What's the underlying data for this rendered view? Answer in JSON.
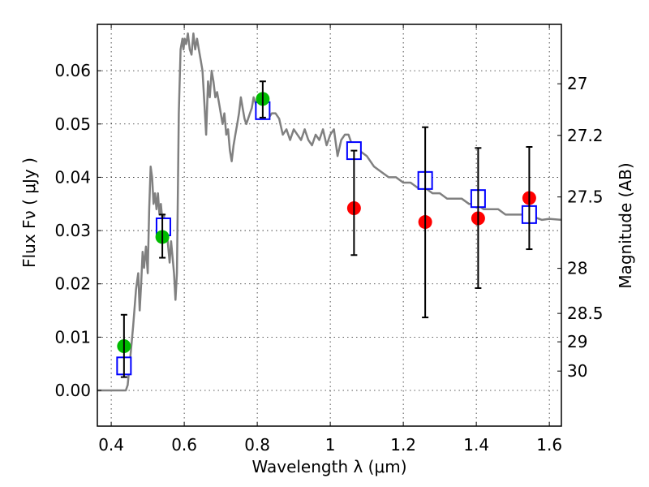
{
  "chart_data": {
    "type": "scatter",
    "title": "",
    "xlabel": "Wavelength  λ (μm)",
    "ylabel": "Flux  Fν  ( μJy )",
    "ylabel_right": "Magnitude (AB)",
    "xlim": [
      0.362,
      1.633
    ],
    "ylim": [
      -0.0067,
      0.0687
    ],
    "grid": true,
    "x_ticks": [
      0.4,
      0.6,
      0.8,
      1.0,
      1.2,
      1.4,
      1.6
    ],
    "x_tick_labels": [
      "0.4",
      "0.6",
      "0.8",
      "1",
      "1.2",
      "1.4",
      "1.6"
    ],
    "y_ticks": [
      0.0,
      0.01,
      0.02,
      0.03,
      0.04,
      0.05,
      0.06
    ],
    "y_tick_labels": [
      "0.00",
      "0.01",
      "0.02",
      "0.03",
      "0.04",
      "0.05",
      "0.06"
    ],
    "right_ticks_mag": [
      27,
      27.2,
      27.5,
      28,
      28.5,
      29,
      30
    ],
    "right_tick_labels": [
      "27",
      "27.2",
      "27.5",
      "28",
      "28.5",
      "29",
      "30"
    ],
    "mag_zero_point": 23.9,
    "colors": {
      "model": "#808080",
      "detected": "#00bb00",
      "upper": "#ff0000",
      "model_photometry": "#0000ff",
      "errorbar": "#000000"
    },
    "series": [
      {
        "name": "model-spectrum",
        "kind": "line",
        "x": [
          0.362,
          0.4,
          0.44,
          0.445,
          0.452,
          0.46,
          0.468,
          0.474,
          0.478,
          0.482,
          0.486,
          0.49,
          0.495,
          0.5,
          0.504,
          0.508,
          0.512,
          0.516,
          0.52,
          0.524,
          0.528,
          0.532,
          0.536,
          0.54,
          0.544,
          0.548,
          0.552,
          0.556,
          0.56,
          0.564,
          0.568,
          0.572,
          0.576,
          0.58,
          0.585,
          0.59,
          0.595,
          0.598,
          0.601,
          0.605,
          0.61,
          0.615,
          0.62,
          0.625,
          0.63,
          0.635,
          0.64,
          0.645,
          0.65,
          0.655,
          0.66,
          0.665,
          0.67,
          0.675,
          0.68,
          0.685,
          0.69,
          0.695,
          0.7,
          0.705,
          0.71,
          0.715,
          0.72,
          0.725,
          0.73,
          0.735,
          0.74,
          0.745,
          0.75,
          0.755,
          0.76,
          0.765,
          0.77,
          0.775,
          0.78,
          0.785,
          0.79,
          0.795,
          0.8,
          0.81,
          0.82,
          0.83,
          0.84,
          0.85,
          0.86,
          0.87,
          0.88,
          0.89,
          0.9,
          0.91,
          0.92,
          0.93,
          0.94,
          0.95,
          0.96,
          0.97,
          0.98,
          0.99,
          1.0,
          1.01,
          1.02,
          1.03,
          1.04,
          1.05,
          1.06,
          1.08,
          1.1,
          1.12,
          1.14,
          1.16,
          1.18,
          1.2,
          1.22,
          1.24,
          1.26,
          1.28,
          1.3,
          1.32,
          1.34,
          1.36,
          1.38,
          1.4,
          1.42,
          1.44,
          1.46,
          1.48,
          1.5,
          1.52,
          1.54,
          1.56,
          1.58,
          1.6,
          1.633
        ],
        "y": [
          0.0,
          0.0,
          0.0,
          0.001,
          0.006,
          0.012,
          0.019,
          0.022,
          0.015,
          0.02,
          0.026,
          0.023,
          0.027,
          0.022,
          0.034,
          0.042,
          0.04,
          0.035,
          0.037,
          0.034,
          0.037,
          0.033,
          0.035,
          0.032,
          0.033,
          0.031,
          0.03,
          0.027,
          0.024,
          0.028,
          0.025,
          0.022,
          0.017,
          0.022,
          0.052,
          0.064,
          0.066,
          0.064,
          0.066,
          0.065,
          0.067,
          0.064,
          0.063,
          0.067,
          0.064,
          0.066,
          0.064,
          0.062,
          0.06,
          0.054,
          0.048,
          0.058,
          0.055,
          0.06,
          0.058,
          0.055,
          0.056,
          0.054,
          0.052,
          0.05,
          0.052,
          0.048,
          0.049,
          0.045,
          0.043,
          0.046,
          0.048,
          0.05,
          0.052,
          0.055,
          0.053,
          0.051,
          0.05,
          0.051,
          0.052,
          0.053,
          0.055,
          0.054,
          0.053,
          0.052,
          0.054,
          0.051,
          0.052,
          0.052,
          0.051,
          0.048,
          0.049,
          0.047,
          0.049,
          0.048,
          0.047,
          0.049,
          0.047,
          0.046,
          0.048,
          0.047,
          0.049,
          0.046,
          0.048,
          0.049,
          0.044,
          0.047,
          0.048,
          0.048,
          0.046,
          0.045,
          0.044,
          0.042,
          0.041,
          0.04,
          0.04,
          0.039,
          0.039,
          0.038,
          0.038,
          0.037,
          0.037,
          0.036,
          0.036,
          0.036,
          0.035,
          0.035,
          0.034,
          0.034,
          0.034,
          0.033,
          0.033,
          0.033,
          0.033,
          0.0325,
          0.032,
          0.0322,
          0.032
        ]
      },
      {
        "name": "observed-detections",
        "kind": "scatter-circle",
        "x": [
          0.435,
          0.54,
          0.815
        ],
        "y": [
          0.0083,
          0.0288,
          0.0547
        ]
      },
      {
        "name": "observed-nir",
        "kind": "scatter-circle",
        "x": [
          1.065,
          1.26,
          1.405,
          1.545
        ],
        "y": [
          0.0342,
          0.0316,
          0.0323,
          0.0361
        ]
      },
      {
        "name": "model-photometry",
        "kind": "scatter-square",
        "x": [
          0.435,
          0.543,
          0.815,
          1.065,
          1.26,
          1.405,
          1.545
        ],
        "y": [
          0.0046,
          0.0307,
          0.0525,
          0.045,
          0.0394,
          0.036,
          0.033
        ]
      },
      {
        "name": "error-bars",
        "kind": "errorbar",
        "x": [
          0.435,
          0.54,
          0.815,
          1.065,
          1.26,
          1.405,
          1.545
        ],
        "y_low": [
          0.0025,
          0.0249,
          0.0512,
          0.0254,
          0.0137,
          0.0192,
          0.0265
        ],
        "y_high": [
          0.0142,
          0.033,
          0.058,
          0.045,
          0.0494,
          0.0455,
          0.0457
        ]
      }
    ]
  }
}
